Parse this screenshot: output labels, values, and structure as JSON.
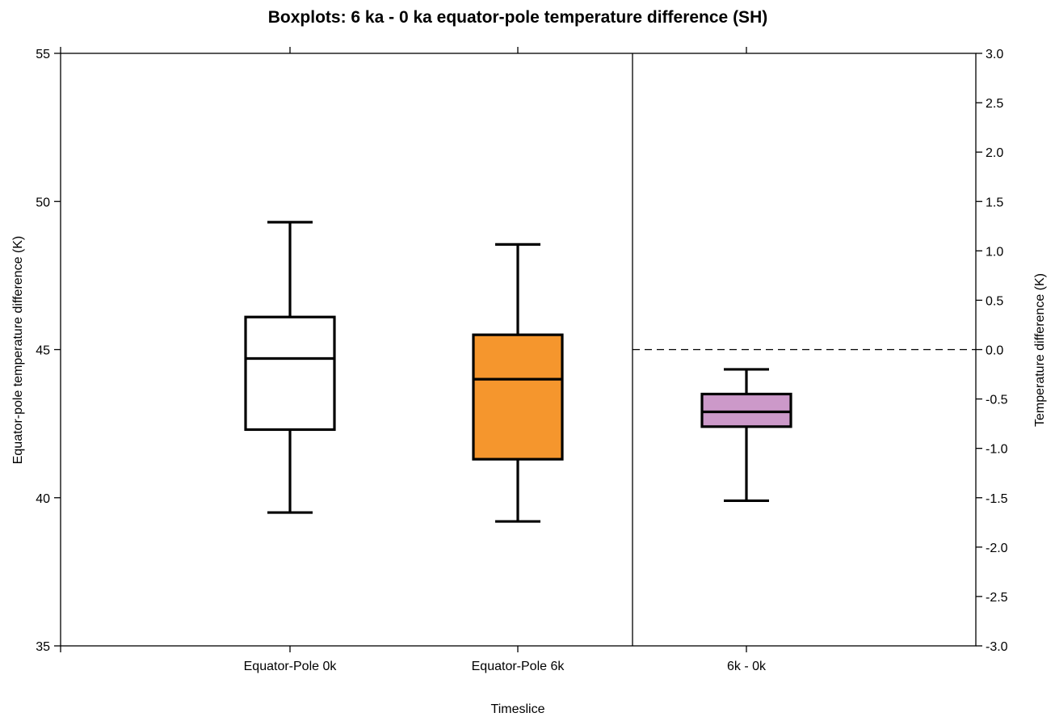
{
  "chart_data": {
    "type": "box",
    "title": "Boxplots: 6 ka - 0 ka equator-pole temperature difference (SH)",
    "xlabel": "Timeslice",
    "ylabel_left": "Equator-pole temperature difference (K)",
    "ylabel_right": "Temperature difference (K)",
    "ylim_left": [
      35,
      55
    ],
    "ylim_right": [
      -3.0,
      3.0
    ],
    "yticks_left": [
      "35",
      "40",
      "45",
      "50",
      "55"
    ],
    "yticks_right": [
      "3.0",
      "2.5",
      "2.0",
      "1.5",
      "1.0",
      "0.5",
      "0.0",
      "-0.5",
      "-1.0",
      "-1.5",
      "-2.0",
      "-2.5",
      "-3.0"
    ],
    "reference_line": {
      "axis": "right",
      "value": 0.0,
      "style": "dashed"
    },
    "categories": [
      "Equator-Pole 0k",
      "Equator-Pole 6k",
      "6k - 0k"
    ],
    "series": [
      {
        "category": "Equator-Pole 0k",
        "axis": "left",
        "color": "#ffffff",
        "whisker_low": 39.5,
        "q1": 42.3,
        "median": 44.7,
        "q3": 46.1,
        "whisker_high": 49.3
      },
      {
        "category": "Equator-Pole 6k",
        "axis": "left",
        "color": "#f5962d",
        "whisker_low": 39.2,
        "q1": 41.3,
        "median": 44.0,
        "q3": 45.5,
        "whisker_high": 48.55
      },
      {
        "category": "6k - 0k",
        "axis": "right",
        "color": "#cc99c9",
        "whisker_low": -1.53,
        "q1": -0.78,
        "median": -0.63,
        "q3": -0.45,
        "whisker_high": -0.2
      }
    ]
  }
}
